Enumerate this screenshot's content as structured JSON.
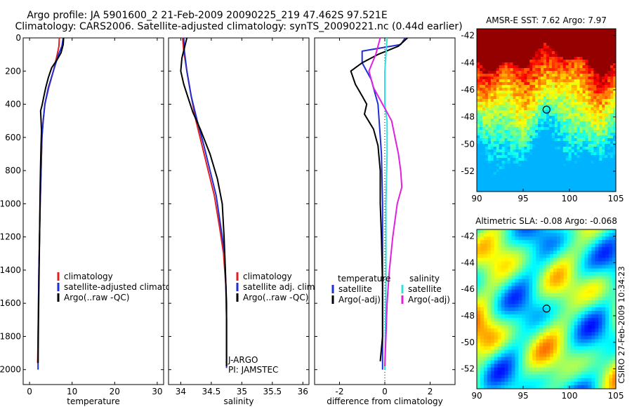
{
  "header": {
    "line1": "Argo profile: JA 5901600_2 21-Feb-2009 20090225_219 47.462S 97.521E",
    "line2": "Climatology: CARS2006. Satellite-adjusted climatology: synTS_20090221.nc (0.44d earlier)"
  },
  "side_label": "CSIRO 27-Feb-2009 10:34:23",
  "colors": {
    "climatology": "#e02020",
    "satellite": "#1f2fd6",
    "argo": "#000000",
    "satellite_s": "#30e0e0",
    "argo_s": "#e020e0"
  },
  "chart_data": [
    {
      "id": "temperature",
      "type": "line",
      "xlabel": "temperature",
      "xlim": [
        -1.5,
        31.5
      ],
      "ylim": [
        0,
        2090
      ],
      "y_reversed": true,
      "xticks": [
        0,
        10,
        20,
        30
      ],
      "yticks": [
        0,
        200,
        400,
        600,
        800,
        1000,
        1200,
        1400,
        1600,
        1800,
        2000
      ],
      "legend": [
        {
          "label": "climatology",
          "color_key": "climatology"
        },
        {
          "label": "satellite-adjusted climatology",
          "color_key": "satellite"
        },
        {
          "label": "Argo(..raw -QC)",
          "color_key": "argo"
        }
      ],
      "series": [
        {
          "name": "climatology",
          "color_key": "climatology",
          "points": [
            [
              7.0,
              0
            ],
            [
              6.9,
              50
            ],
            [
              6.5,
              100
            ],
            [
              5.6,
              200
            ],
            [
              4.5,
              300
            ],
            [
              3.6,
              400
            ],
            [
              3.2,
              500
            ],
            [
              2.9,
              600
            ],
            [
              2.7,
              800
            ],
            [
              2.5,
              1000
            ],
            [
              2.35,
              1200
            ],
            [
              2.2,
              1400
            ],
            [
              2.1,
              1600
            ],
            [
              2.0,
              1800
            ],
            [
              1.9,
              1960
            ]
          ]
        },
        {
          "name": "satellite-adjusted climatology",
          "color_key": "satellite",
          "points": [
            [
              7.9,
              0
            ],
            [
              7.6,
              50
            ],
            [
              6.8,
              100
            ],
            [
              5.6,
              200
            ],
            [
              4.4,
              300
            ],
            [
              3.6,
              400
            ],
            [
              3.2,
              500
            ],
            [
              2.9,
              600
            ],
            [
              2.7,
              800
            ],
            [
              2.5,
              1000
            ],
            [
              2.35,
              1200
            ],
            [
              2.2,
              1400
            ],
            [
              2.1,
              1600
            ],
            [
              2.0,
              1800
            ],
            [
              2.0,
              2000
            ]
          ]
        },
        {
          "name": "Argo(..raw -QC)",
          "color_key": "argo",
          "points": [
            [
              8.0,
              0
            ],
            [
              7.9,
              40
            ],
            [
              7.4,
              90
            ],
            [
              6.5,
              130
            ],
            [
              5.2,
              180
            ],
            [
              4.4,
              240
            ],
            [
              3.8,
              300
            ],
            [
              3.3,
              360
            ],
            [
              2.9,
              410
            ],
            [
              2.6,
              440
            ],
            [
              2.7,
              500
            ],
            [
              2.8,
              560
            ],
            [
              2.7,
              640
            ],
            [
              2.6,
              760
            ],
            [
              2.5,
              900
            ],
            [
              2.4,
              1100
            ],
            [
              2.3,
              1300
            ],
            [
              2.2,
              1500
            ],
            [
              2.1,
              1700
            ],
            [
              2.0,
              1960
            ]
          ]
        }
      ]
    },
    {
      "id": "salinity",
      "type": "line",
      "xlabel": "salinity",
      "xlim": [
        33.8,
        36.1
      ],
      "ylim": [
        0,
        2090
      ],
      "y_reversed": true,
      "xticks": [
        34,
        34.5,
        35,
        35.5,
        36
      ],
      "legend": [
        {
          "label": "climatology",
          "color_key": "climatology"
        },
        {
          "label": "satellite adj. clim.",
          "color_key": "satellite"
        },
        {
          "label": "Argo(..raw -QC)",
          "color_key": "argo"
        }
      ],
      "annotations": [
        "J-ARGO",
        "PI: JAMSTEC"
      ],
      "series": [
        {
          "name": "climatology",
          "color_key": "climatology",
          "points": [
            [
              34.03,
              0
            ],
            [
              34.05,
              80
            ],
            [
              34.1,
              200
            ],
            [
              34.17,
              350
            ],
            [
              34.25,
              500
            ],
            [
              34.35,
              650
            ],
            [
              34.45,
              800
            ],
            [
              34.55,
              950
            ],
            [
              34.64,
              1150
            ],
            [
              34.7,
              1300
            ],
            [
              34.74,
              1500
            ],
            [
              34.75,
              1700
            ],
            [
              34.75,
              1980
            ]
          ]
        },
        {
          "name": "satellite adj. clim.",
          "color_key": "satellite",
          "points": [
            [
              34.05,
              0
            ],
            [
              34.06,
              80
            ],
            [
              34.1,
              200
            ],
            [
              34.17,
              350
            ],
            [
              34.27,
              500
            ],
            [
              34.38,
              650
            ],
            [
              34.48,
              800
            ],
            [
              34.58,
              950
            ],
            [
              34.66,
              1150
            ],
            [
              34.72,
              1300
            ],
            [
              34.74,
              1500
            ],
            [
              34.75,
              1700
            ],
            [
              34.75,
              1990
            ]
          ]
        },
        {
          "name": "Argo(..raw -QC)",
          "color_key": "argo",
          "points": [
            [
              34.1,
              0
            ],
            [
              34.06,
              60
            ],
            [
              34.02,
              120
            ],
            [
              34.0,
              200
            ],
            [
              34.05,
              280
            ],
            [
              34.12,
              360
            ],
            [
              34.2,
              450
            ],
            [
              34.32,
              550
            ],
            [
              34.48,
              700
            ],
            [
              34.6,
              850
            ],
            [
              34.68,
              1000
            ],
            [
              34.71,
              1200
            ],
            [
              34.73,
              1400
            ],
            [
              34.75,
              1600
            ],
            [
              34.75,
              1980
            ]
          ]
        }
      ]
    },
    {
      "id": "difference",
      "type": "line",
      "xlabel": "difference from climatology",
      "xlim": [
        -3.1,
        3.1
      ],
      "ylim": [
        0,
        2090
      ],
      "y_reversed": true,
      "xticks": [
        -2,
        0,
        2
      ],
      "legend": [
        {
          "label": "temperature",
          "color_key": null
        },
        {
          "label": "satellite",
          "color_key": "satellite"
        },
        {
          "label": "Argo(-adj)",
          "color_key": "argo"
        },
        {
          "label": "salinity",
          "color_key": null
        },
        {
          "label": "satellite",
          "color_key": "satellite_s"
        },
        {
          "label": "Argo(-adj)",
          "color_key": "argo_s"
        }
      ],
      "series": [
        {
          "name": "temperature satellite",
          "color_key": "satellite",
          "points": [
            [
              0.9,
              0
            ],
            [
              0.7,
              40
            ],
            [
              -1.0,
              80
            ],
            [
              -1.0,
              150
            ],
            [
              -0.6,
              250
            ],
            [
              -0.3,
              400
            ],
            [
              -0.15,
              700
            ],
            [
              -0.1,
              1000
            ],
            [
              -0.1,
              1500
            ],
            [
              -0.1,
              2000
            ]
          ]
        },
        {
          "name": "temperature Argo(-adj)",
          "color_key": "argo",
          "points": [
            [
              1.0,
              0
            ],
            [
              0.6,
              50
            ],
            [
              -0.3,
              100
            ],
            [
              -1.0,
              150
            ],
            [
              -1.5,
              200
            ],
            [
              -1.3,
              280
            ],
            [
              -1.0,
              350
            ],
            [
              -0.8,
              400
            ],
            [
              -0.9,
              460
            ],
            [
              -0.5,
              550
            ],
            [
              -0.3,
              650
            ],
            [
              -0.2,
              800
            ],
            [
              -0.2,
              1000
            ],
            [
              -0.15,
              1200
            ],
            [
              -0.1,
              1500
            ],
            [
              -0.1,
              1800
            ],
            [
              -0.2,
              1950
            ]
          ]
        },
        {
          "name": "salinity satellite",
          "color_key": "satellite_s",
          "points": [
            [
              0.1,
              0
            ],
            [
              0.05,
              100
            ],
            [
              0.0,
              200
            ],
            [
              0.0,
              400
            ],
            [
              0.1,
              500
            ],
            [
              0.1,
              700
            ],
            [
              0.05,
              1000
            ],
            [
              0.05,
              1500
            ],
            [
              0.0,
              2000
            ]
          ]
        },
        {
          "name": "salinity Argo(-adj)",
          "color_key": "argo_s",
          "points": [
            [
              -0.2,
              0
            ],
            [
              -0.4,
              100
            ],
            [
              -0.7,
              200
            ],
            [
              -0.5,
              300
            ],
            [
              -0.1,
              400
            ],
            [
              0.3,
              500
            ],
            [
              0.45,
              600
            ],
            [
              0.6,
              700
            ],
            [
              0.7,
              800
            ],
            [
              0.75,
              900
            ],
            [
              0.55,
              1000
            ],
            [
              0.45,
              1100
            ],
            [
              0.35,
              1200
            ],
            [
              0.2,
              1400
            ],
            [
              0.1,
              1600
            ],
            [
              0.05,
              1800
            ],
            [
              0.0,
              1980
            ]
          ]
        }
      ]
    },
    {
      "id": "sst-map",
      "type": "heatmap",
      "title": "AMSR-E SST: 7.62 Argo: 7.97",
      "xlim": [
        90,
        105
      ],
      "ylim": [
        -53.5,
        -41.5
      ],
      "xticks": [
        90,
        95,
        100,
        105
      ],
      "yticks": [
        -42,
        -44,
        -46,
        -48,
        -50,
        -52
      ],
      "marker": [
        97.521,
        -47.462
      ]
    },
    {
      "id": "sla-map",
      "type": "heatmap",
      "title": "Altimetric SLA: -0.08 Argo: -0.068",
      "xlim": [
        90,
        105
      ],
      "ylim": [
        -53.5,
        -41.5
      ],
      "xticks": [
        90,
        95,
        100,
        105
      ],
      "yticks": [
        -42,
        -44,
        -46,
        -48,
        -50,
        -52
      ],
      "marker": [
        97.521,
        -47.462
      ]
    }
  ]
}
